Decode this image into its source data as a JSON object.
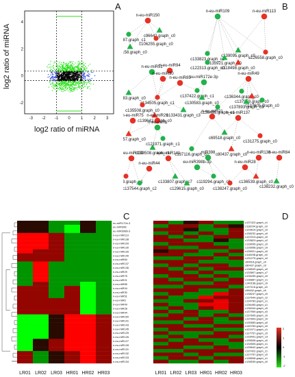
{
  "panels": {
    "A": {
      "letter": "A",
      "xlabel": "log2 ratio of miRNA",
      "ylabel": "log2 ratio of miRNA",
      "x_ticks": [
        "-3",
        "-2",
        "-1",
        "0",
        "1",
        "2",
        "3"
      ],
      "y_ticks": [
        "4",
        "2",
        "0",
        "-2"
      ]
    },
    "B": {
      "letter": "B",
      "nodes": [
        {
          "label": "n-eu-miR150"
        },
        {
          "label": "c136887.graph_c1"
        },
        {
          "label": "c96642.graph_c0"
        },
        {
          "label": "c106255.graph_c0"
        },
        {
          "label": "c140158.graph_c0"
        },
        {
          "label": "n-eu-miR109"
        },
        {
          "label": "n-eu-miR113"
        },
        {
          "label": "c133823.graph_c2"
        },
        {
          "label": "c139095.graph_c0"
        },
        {
          "label": "c126558.graph_c0"
        },
        {
          "label": "c135921.graph_c0"
        },
        {
          "label": "c122313.graph_c0"
        },
        {
          "label": "c118498.graph_c0"
        },
        {
          "label": "n-eu-miR51"
        },
        {
          "label": "n-eu-miR94"
        },
        {
          "label": "n-eu-miR30"
        },
        {
          "label": "n-eu-miR85"
        },
        {
          "label": "eu-miR172e-3p"
        },
        {
          "label": "n-eu-miR49"
        },
        {
          "label": "c137422.graph_c1"
        },
        {
          "label": "c140783.graph_c0"
        },
        {
          "label": "c134505.graph_c1"
        },
        {
          "label": "c130583.graph_c0"
        },
        {
          "label": "c136344.graph_c0"
        },
        {
          "label": "c137959.graph_c0"
        },
        {
          "label": "c137605.graph_c0"
        },
        {
          "label": "c137893.graph_c0"
        },
        {
          "label": "c135508.graph_c0"
        },
        {
          "label": "c133431.graph_c3"
        },
        {
          "label": "c136495.graph_c1"
        },
        {
          "label": "c139642.graph_c0"
        },
        {
          "label": "n-eu-miR75"
        },
        {
          "label": "n-eu-miR29"
        },
        {
          "label": "n-eu-miR6"
        },
        {
          "label": "n-eu-miR21"
        },
        {
          "label": "n-eu-miR137"
        },
        {
          "label": "c127757.graph_c0"
        },
        {
          "label": "c121971.graph_c1"
        },
        {
          "label": "c69518.graph_c0"
        },
        {
          "label": "c131275.graph_c0"
        },
        {
          "label": "c138508.graph_c1"
        },
        {
          "label": "c137116.graph_c0"
        },
        {
          "label": "c80437.graph_c0"
        },
        {
          "label": "n-eu-miR130"
        },
        {
          "label": "n-eu-miR141"
        },
        {
          "label": "miR398"
        },
        {
          "label": "n-eu-miR138"
        },
        {
          "label": "n-eu-miR84"
        },
        {
          "label": "n-eu-miR44"
        },
        {
          "label": "eu-miR398b-3p"
        },
        {
          "label": "n-eu-miR28"
        },
        {
          "label": "c134783.graph_c1"
        },
        {
          "label": "c133807.graph_c7"
        },
        {
          "label": "c119294.graph_c0"
        },
        {
          "label": "c136539.graph_c0"
        },
        {
          "label": "c137544.graph_c2"
        },
        {
          "label": "c129615.graph_c0"
        },
        {
          "label": "c138247.graph_c0"
        },
        {
          "label": "c138232.graph_c0"
        }
      ]
    },
    "C": {
      "letter": "C",
      "columns": [
        "LR01",
        "LR02",
        "LR03",
        "HR01",
        "HR02",
        "HR03"
      ],
      "row_labels": [
        "eu-miR172e-3p",
        "eu-miR398",
        "eu-miR398b-3p",
        "n-eu-miR113",
        "n-eu-miR138",
        "n-eu-miR109",
        "n-eu-miR130",
        "n-eu-miR139",
        "n-eu-miR140",
        "n-eu-miR84",
        "n-eu-miR137",
        "n-eu-miR136",
        "n-eu-miR29",
        "n-eu-miR75",
        "n-eu-miR21",
        "n-eu-miR85",
        "n-eu-miR94",
        "n-eu-miR30",
        "n-eu-miR51",
        "n-eu-miR6",
        "n-eu-miR49",
        "n-eu-miR28",
        "n-eu-miR44",
        "n-eu-miR150",
        "n-eu-miR141",
        "n-eu-miR143",
        "n-eu-miR145",
        "n-eu-miR125",
        "n-eu-miR126",
        "n-eu-miR127",
        "n-eu-miR128",
        "n-eu-miR131",
        "n-eu-miR132",
        "n-eu-miR133",
        "n-eu-miR134"
      ],
      "values": [
        [
          0,
          0,
          -1,
          -1,
          0,
          -1
        ],
        [
          0,
          0,
          -1,
          -2,
          0,
          -1
        ],
        [
          0,
          0,
          -1,
          -2,
          0,
          -1
        ],
        [
          2,
          2,
          1,
          -1,
          -1,
          -1
        ],
        [
          2,
          2,
          1,
          -1,
          -1,
          -1
        ],
        [
          2,
          2,
          1,
          -1,
          -1,
          -1
        ],
        [
          2,
          2,
          1,
          -1,
          -1,
          -1
        ],
        [
          2,
          1,
          1,
          -1,
          -1,
          -1
        ],
        [
          1,
          1,
          1,
          -1,
          -1,
          -1
        ],
        [
          1,
          1,
          1,
          -1,
          -1,
          -1
        ],
        [
          -1,
          2,
          -1,
          -1,
          -1,
          -1
        ],
        [
          -1,
          2,
          -1,
          -1,
          -1,
          -1
        ],
        [
          -1,
          2,
          -1,
          -1,
          -1,
          -1
        ],
        [
          -1,
          2,
          -1,
          -1,
          -1,
          -1
        ],
        [
          -1,
          2,
          -1,
          -1,
          -1,
          -1
        ],
        [
          -1,
          1,
          -1,
          -1,
          -2,
          -1
        ],
        [
          1,
          1,
          -1,
          1,
          -2,
          -1
        ],
        [
          1,
          1,
          -1,
          1,
          -2,
          -1
        ],
        [
          1,
          1,
          -1,
          1,
          -2,
          -1
        ],
        [
          1,
          1,
          1,
          1,
          -2,
          -1
        ],
        [
          1,
          1,
          1,
          1,
          -2,
          -1
        ],
        [
          1,
          1,
          1,
          1,
          -2,
          -1
        ],
        [
          1,
          1,
          1,
          1,
          -2,
          -1
        ],
        [
          -2,
          -2,
          0,
          2,
          2,
          1
        ],
        [
          -2,
          -2,
          0,
          2,
          2,
          1
        ],
        [
          -2,
          -2,
          0,
          2,
          2,
          1
        ],
        [
          -2,
          -2,
          0,
          2,
          2,
          1
        ],
        [
          -2,
          -2,
          0,
          2,
          2,
          1
        ],
        [
          -2,
          -2,
          0,
          2,
          2,
          1
        ],
        [
          -2,
          0,
          1,
          2,
          2,
          1
        ],
        [
          -2,
          0,
          1,
          2,
          2,
          1
        ],
        [
          -2,
          0,
          1,
          2,
          2,
          1
        ],
        [
          1,
          -1,
          0,
          1,
          2,
          1
        ],
        [
          1,
          -1,
          0,
          1,
          2,
          1
        ],
        [
          1,
          -1,
          0,
          1,
          2,
          1
        ]
      ]
    },
    "D": {
      "letter": "D",
      "columns": [
        "LR01",
        "LR02",
        "LR03",
        "HR01",
        "HR02",
        "HR03"
      ],
      "legend_ticks": [
        "2",
        "1",
        "0",
        "-1",
        "-2"
      ],
      "row_labels": [
        "c137422.graph_c1",
        "c118294.graph_c0",
        "c129615.graph_c0",
        "c138232.graph_c0",
        "c122313.graph_c0",
        "c133823.graph_c2",
        "c139095.graph_c0",
        "c126558.graph_c0",
        "c135921.graph_c0",
        "c118498.graph_c0",
        "c131275.graph_c0",
        "c69518.graph_c0",
        "c80437.graph_c0",
        "c138539.graph_c0",
        "c133807.graph_c7",
        "c106255.graph_c0",
        "c136887.graph_c1",
        "c140158.graph_c0",
        "c137116.graph_c0",
        "c96642.graph_c0",
        "c138247.graph_c0",
        "c137544.graph_c2",
        "c134783.graph_c1",
        "c136495.graph_c1",
        "c136344.graph_c0",
        "c137959.graph_c0",
        "c137605.graph_c0",
        "c137893.graph_c0",
        "c130583.graph_c0",
        "c140783.graph_c0",
        "c121971.graph_c1",
        "c127757.graph_c0",
        "c133431.graph_c3",
        "c135508.graph_c0",
        "c134505.graph_c1",
        "c139642.graph_c0",
        "c137422.graph_c1",
        "c127757.graph_c0",
        "c138508.graph_c1",
        "c136539.graph_c0"
      ],
      "values": [
        [
          1,
          -1,
          0,
          1,
          -1,
          -1
        ],
        [
          -1,
          1,
          1,
          -1,
          1,
          0
        ],
        [
          1,
          1,
          0,
          -1,
          -1,
          1
        ],
        [
          -1,
          1,
          -1,
          1,
          -1,
          1
        ],
        [
          1,
          -1,
          1,
          -1,
          1,
          1
        ],
        [
          1,
          1,
          -1,
          -1,
          0,
          -1
        ],
        [
          -1,
          1,
          1,
          1,
          -1,
          -1
        ],
        [
          1,
          -1,
          -1,
          1,
          1,
          -1
        ],
        [
          0,
          1,
          1,
          -1,
          -1,
          1
        ],
        [
          1,
          1,
          -1,
          -1,
          1,
          -1
        ],
        [
          -1,
          -1,
          1,
          1,
          -1,
          1
        ],
        [
          1,
          1,
          1,
          -1,
          -1,
          -1
        ],
        [
          -1,
          1,
          -1,
          1,
          1,
          -1
        ],
        [
          1,
          -1,
          1,
          -1,
          1,
          1
        ],
        [
          1,
          1,
          -1,
          1,
          -1,
          -1
        ],
        [
          -1,
          1,
          1,
          -1,
          1,
          -1
        ],
        [
          1,
          -1,
          1,
          1,
          -1,
          1
        ],
        [
          1,
          1,
          -1,
          -1,
          1,
          1
        ],
        [
          -1,
          -1,
          1,
          1,
          1,
          -1
        ],
        [
          1,
          1,
          1,
          -1,
          -1,
          1
        ],
        [
          -1,
          1,
          -1,
          -1,
          2,
          1
        ],
        [
          1,
          -1,
          -1,
          2,
          1,
          1
        ],
        [
          -1,
          -1,
          1,
          1,
          2,
          1
        ],
        [
          1,
          -1,
          -1,
          2,
          2,
          1
        ],
        [
          -1,
          1,
          -1,
          1,
          2,
          1
        ],
        [
          1,
          -1,
          1,
          -1,
          -1,
          1
        ],
        [
          -1,
          1,
          1,
          -1,
          1,
          -1
        ],
        [
          1,
          1,
          -1,
          1,
          -1,
          1
        ],
        [
          -1,
          -1,
          1,
          1,
          -1,
          -1
        ],
        [
          1,
          1,
          -1,
          -1,
          1,
          1
        ],
        [
          -1,
          1,
          1,
          1,
          -1,
          -1
        ],
        [
          1,
          -1,
          -1,
          -1,
          1,
          1
        ],
        [
          -1,
          1,
          -1,
          1,
          1,
          -1
        ],
        [
          1,
          -1,
          1,
          -1,
          -1,
          1
        ],
        [
          -1,
          1,
          1,
          1,
          -1,
          -1
        ],
        [
          1,
          1,
          -1,
          -1,
          1,
          -1
        ],
        [
          -1,
          -1,
          1,
          1,
          1,
          1
        ],
        [
          1,
          1,
          -1,
          1,
          -1,
          -1
        ],
        [
          -1,
          1,
          1,
          -1,
          1,
          1
        ],
        [
          1,
          -1,
          -1,
          1,
          -1,
          1
        ]
      ]
    }
  },
  "colors": {
    "red": "#e53226",
    "green": "#22b24c",
    "black": "#000000",
    "blue_points": "#2a3fd8",
    "green_points": "#2ae01a"
  }
}
